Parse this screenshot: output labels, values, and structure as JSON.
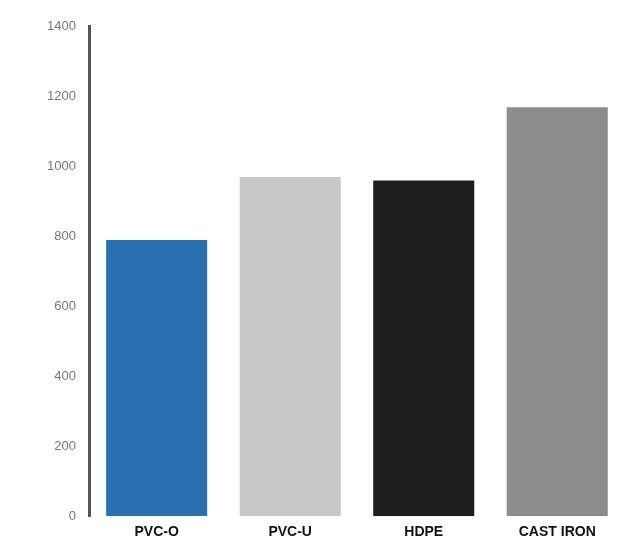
{
  "chart_data": {
    "type": "bar",
    "categories": [
      "PVC-O",
      "PVC-U",
      "HDPE",
      "CAST IRON"
    ],
    "values": [
      790,
      970,
      960,
      1170
    ],
    "colors": [
      "#2a6fb0",
      "#c8c8c8",
      "#1e1e1e",
      "#8c8c8c"
    ],
    "ylim": [
      0,
      1400
    ],
    "yticks": [
      0,
      200,
      400,
      600,
      800,
      1000,
      1200,
      1400
    ],
    "grid": false
  }
}
